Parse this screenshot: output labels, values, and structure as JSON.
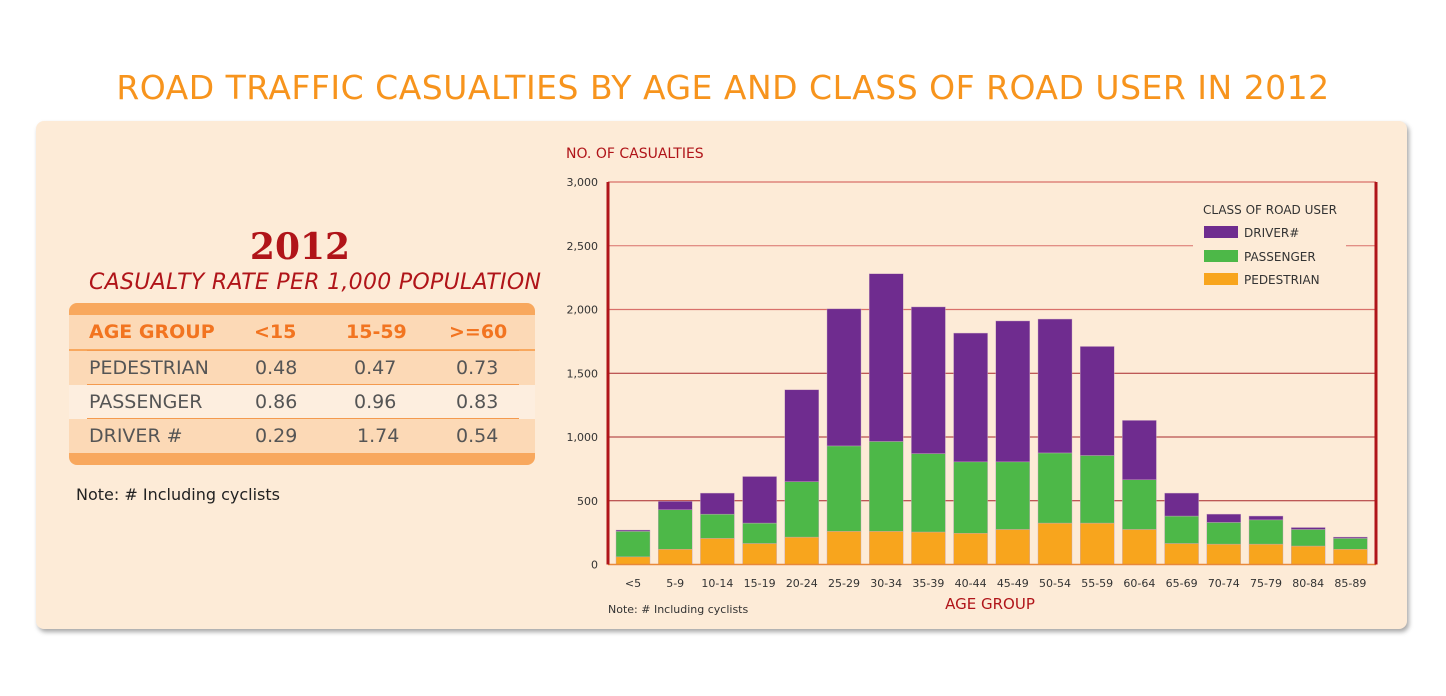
{
  "title": "ROAD TRAFFIC CASUALTIES BY AGE AND CLASS OF ROAD USER IN 2012",
  "rate_panel": {
    "year": "2012",
    "subtitle": "CASUALTY RATE PER 1,000 POPULATION",
    "headers": [
      "AGE GROUP",
      "<15",
      "15-59",
      ">=60"
    ],
    "rows": [
      {
        "label": "PEDESTRIAN",
        "values": [
          "0.48",
          "0.47",
          "0.73"
        ]
      },
      {
        "label": "PASSENGER",
        "values": [
          "0.86",
          "0.96",
          "0.83"
        ]
      },
      {
        "label": "DRIVER #",
        "values": [
          "0.29",
          "1.74",
          "0.54"
        ]
      }
    ],
    "note": "Note:  #  Including cyclists"
  },
  "chart_data": {
    "type": "bar",
    "stacked": true,
    "ylabel": "NO. OF CASUALTIES",
    "xlabel": "AGE GROUP",
    "note": "Note:  # Including cyclists",
    "ylim": [
      0,
      3000
    ],
    "yticks": [
      "0",
      "500",
      "1,000",
      "1,500",
      "2,000",
      "2,500",
      "3,000"
    ],
    "grid": true,
    "legend_title": "CLASS OF ROAD USER",
    "legend_position": "top-right",
    "categories": [
      "<5",
      "5-9",
      "10-14",
      "15-19",
      "20-24",
      "25-29",
      "30-34",
      "35-39",
      "40-44",
      "45-49",
      "50-54",
      "55-59",
      "60-64",
      "65-69",
      "70-74",
      "75-79",
      "80-84",
      "85-89"
    ],
    "series": [
      {
        "name": "PEDESTRIAN",
        "color": "#f8a51d",
        "values": [
          60,
          120,
          205,
          165,
          215,
          260,
          260,
          255,
          245,
          275,
          325,
          325,
          275,
          165,
          160,
          160,
          145,
          120
        ]
      },
      {
        "name": "PASSENGER",
        "color": "#4db848",
        "values": [
          200,
          310,
          190,
          160,
          435,
          670,
          705,
          615,
          560,
          530,
          550,
          530,
          390,
          215,
          170,
          190,
          130,
          85
        ]
      },
      {
        "name": "DRIVER#",
        "color": "#6f2c8f",
        "values": [
          10,
          65,
          165,
          365,
          720,
          1075,
          1315,
          1150,
          1010,
          1105,
          1050,
          855,
          465,
          180,
          65,
          30,
          15,
          10
        ]
      }
    ]
  }
}
